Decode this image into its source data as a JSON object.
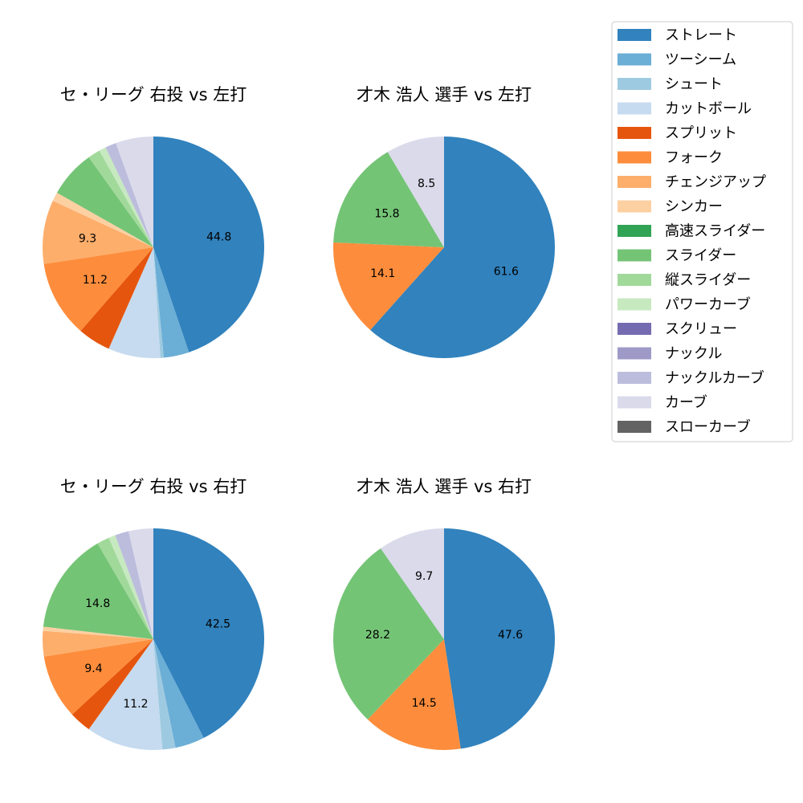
{
  "legend": {
    "items": [
      {
        "label": "ストレート",
        "color": "#3182bd"
      },
      {
        "label": "ツーシーム",
        "color": "#6baed6"
      },
      {
        "label": "シュート",
        "color": "#9ecae1"
      },
      {
        "label": "カットボール",
        "color": "#c6dbef"
      },
      {
        "label": "スプリット",
        "color": "#e6550d"
      },
      {
        "label": "フォーク",
        "color": "#fd8d3c"
      },
      {
        "label": "チェンジアップ",
        "color": "#fdae6b"
      },
      {
        "label": "シンカー",
        "color": "#fdd0a2"
      },
      {
        "label": "高速スライダー",
        "color": "#31a354"
      },
      {
        "label": "スライダー",
        "color": "#74c476"
      },
      {
        "label": "縦スライダー",
        "color": "#a1d99b"
      },
      {
        "label": "パワーカーブ",
        "color": "#c7e9c0"
      },
      {
        "label": "スクリュー",
        "color": "#756bb1"
      },
      {
        "label": "ナックル",
        "color": "#9e9ac8"
      },
      {
        "label": "ナックルカーブ",
        "color": "#bcbddc"
      },
      {
        "label": "カーブ",
        "color": "#dadaeb"
      },
      {
        "label": "スローカーブ",
        "color": "#636363"
      }
    ]
  },
  "chart_data": [
    {
      "type": "pie",
      "title": "セ・リーグ 右投 vs 左打",
      "slices": [
        {
          "label": "ストレート",
          "value": 44.8,
          "show_label": true
        },
        {
          "label": "ツーシーム",
          "value": 3.7,
          "show_label": false
        },
        {
          "label": "シュート",
          "value": 0.5,
          "show_label": false
        },
        {
          "label": "カットボール",
          "value": 7.6,
          "show_label": false
        },
        {
          "label": "スプリット",
          "value": 4.8,
          "show_label": false
        },
        {
          "label": "フォーク",
          "value": 11.2,
          "show_label": true
        },
        {
          "label": "チェンジアップ",
          "value": 9.3,
          "show_label": true
        },
        {
          "label": "シンカー",
          "value": 1.3,
          "show_label": false
        },
        {
          "label": "スライダー",
          "value": 6.9,
          "show_label": false
        },
        {
          "label": "縦スライダー",
          "value": 1.8,
          "show_label": false
        },
        {
          "label": "パワーカーブ",
          "value": 1.0,
          "show_label": false
        },
        {
          "label": "ナックルカーブ",
          "value": 1.6,
          "show_label": false
        },
        {
          "label": "カーブ",
          "value": 5.5,
          "show_label": false
        }
      ]
    },
    {
      "type": "pie",
      "title": "才木 浩人 選手 vs 左打",
      "slices": [
        {
          "label": "ストレート",
          "value": 61.6,
          "show_label": true
        },
        {
          "label": "フォーク",
          "value": 14.1,
          "show_label": true
        },
        {
          "label": "スライダー",
          "value": 15.8,
          "show_label": true
        },
        {
          "label": "カーブ",
          "value": 8.5,
          "show_label": true
        }
      ]
    },
    {
      "type": "pie",
      "title": "セ・リーグ 右投 vs 右打",
      "slices": [
        {
          "label": "ストレート",
          "value": 42.5,
          "show_label": true
        },
        {
          "label": "ツーシーム",
          "value": 4.3,
          "show_label": false
        },
        {
          "label": "シュート",
          "value": 1.9,
          "show_label": false
        },
        {
          "label": "カットボール",
          "value": 11.2,
          "show_label": true
        },
        {
          "label": "スプリット",
          "value": 3.2,
          "show_label": false
        },
        {
          "label": "フォーク",
          "value": 9.4,
          "show_label": true
        },
        {
          "label": "チェンジアップ",
          "value": 3.7,
          "show_label": false
        },
        {
          "label": "シンカー",
          "value": 0.6,
          "show_label": false
        },
        {
          "label": "スライダー",
          "value": 14.8,
          "show_label": true
        },
        {
          "label": "縦スライダー",
          "value": 1.8,
          "show_label": false
        },
        {
          "label": "パワーカーブ",
          "value": 1.0,
          "show_label": false
        },
        {
          "label": "ナックルカーブ",
          "value": 2.0,
          "show_label": false
        },
        {
          "label": "カーブ",
          "value": 3.6,
          "show_label": false
        }
      ]
    },
    {
      "type": "pie",
      "title": "才木 浩人 選手 vs 右打",
      "slices": [
        {
          "label": "ストレート",
          "value": 47.6,
          "show_label": true
        },
        {
          "label": "フォーク",
          "value": 14.5,
          "show_label": true
        },
        {
          "label": "スライダー",
          "value": 28.2,
          "show_label": true
        },
        {
          "label": "カーブ",
          "value": 9.7,
          "show_label": true
        }
      ]
    }
  ]
}
